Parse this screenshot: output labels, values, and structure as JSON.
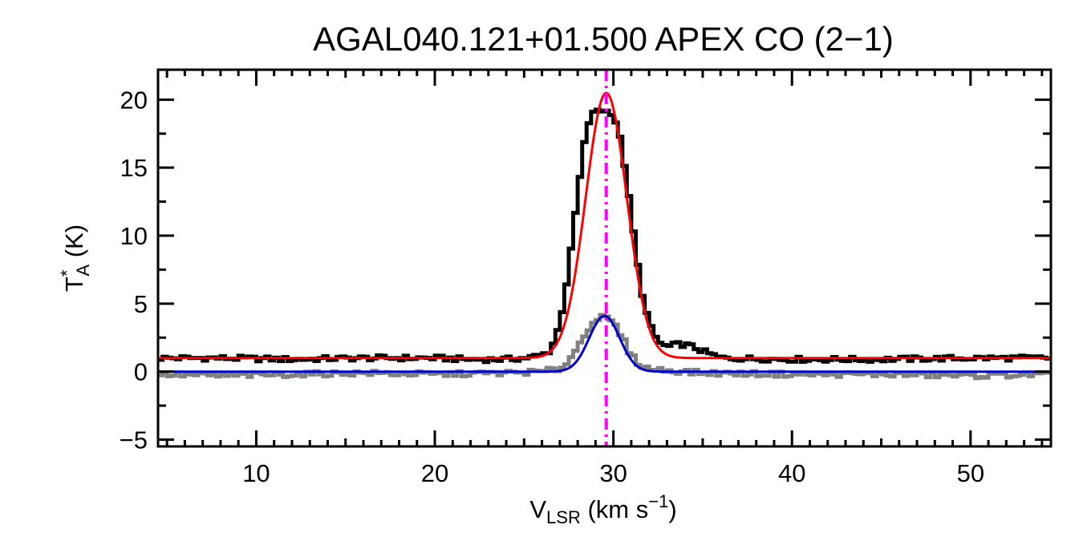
{
  "chart_data": {
    "type": "line",
    "title": "AGAL040.121+01.500  APEX CO (2−1)",
    "xlabel": {
      "main": "V",
      "sub": "LSR",
      "unit_prefix": " (km s",
      "sup": "−1",
      "unit_suffix": ")"
    },
    "ylabel": {
      "main": "T",
      "sup": "*",
      "sub": "A",
      "unit": " (K)"
    },
    "xlim": [
      4.5,
      54.5
    ],
    "ylim": [
      -5.5,
      22.2
    ],
    "xticks": [
      10,
      20,
      30,
      40,
      50
    ],
    "xtick_labels": [
      "10",
      "20",
      "30",
      "40",
      "50"
    ],
    "yticks": [
      -5,
      0,
      5,
      10,
      15,
      20
    ],
    "ytick_labels": [
      "−5",
      "0",
      "5",
      "10",
      "15",
      "20"
    ],
    "grid": false,
    "colors": {
      "observed_spectrum": "#000000",
      "residual_spectrum": "#808080",
      "fit_upper": "#ff0000",
      "fit_lower": "#0000cc",
      "vlsr_marker": "#ff00ff"
    },
    "vlsr_marker_x": 29.6,
    "series": [
      {
        "role": "observed_spectrum",
        "style": "steps",
        "x": [
          4.5,
          8,
          12,
          16,
          20,
          22,
          24,
          25,
          26,
          26.5,
          27,
          27.5,
          28,
          28.5,
          29,
          29.5,
          30,
          30.5,
          31,
          31.5,
          32,
          32.5,
          33,
          33.5,
          34,
          34.5,
          35,
          36,
          40,
          45,
          50,
          54.5
        ],
        "y": [
          1.0,
          1.0,
          0.9,
          1.0,
          1.0,
          0.9,
          0.9,
          1.0,
          1.2,
          1.6,
          3.5,
          7.5,
          13.0,
          18.0,
          19.3,
          19.2,
          19.0,
          16.5,
          11.5,
          6.5,
          3.5,
          2.2,
          1.8,
          2.0,
          2.0,
          1.8,
          1.5,
          1.0,
          0.9,
          0.9,
          1.0,
          1.0
        ]
      },
      {
        "role": "residual_spectrum",
        "style": "steps",
        "x": [
          4.5,
          8,
          12,
          16,
          20,
          24,
          26,
          27,
          27.5,
          28,
          28.5,
          29,
          29.5,
          30,
          30.5,
          31,
          31.5,
          32,
          33,
          35,
          40,
          45,
          50,
          54.5
        ],
        "y": [
          -0.2,
          -0.3,
          -0.2,
          -0.1,
          -0.2,
          -0.1,
          0.0,
          0.2,
          0.8,
          1.8,
          3.0,
          3.9,
          4.0,
          3.6,
          2.5,
          1.2,
          0.5,
          0.2,
          0.1,
          -0.1,
          -0.2,
          -0.2,
          -0.3,
          -0.2
        ]
      },
      {
        "role": "fit_upper",
        "style": "gaussian",
        "baseline": 1.0,
        "amplitude": 19.5,
        "center": 29.6,
        "sigma": 1.15
      },
      {
        "role": "fit_lower",
        "style": "gaussian",
        "baseline": 0.0,
        "amplitude": 4.1,
        "center": 29.5,
        "sigma": 0.85
      }
    ]
  }
}
